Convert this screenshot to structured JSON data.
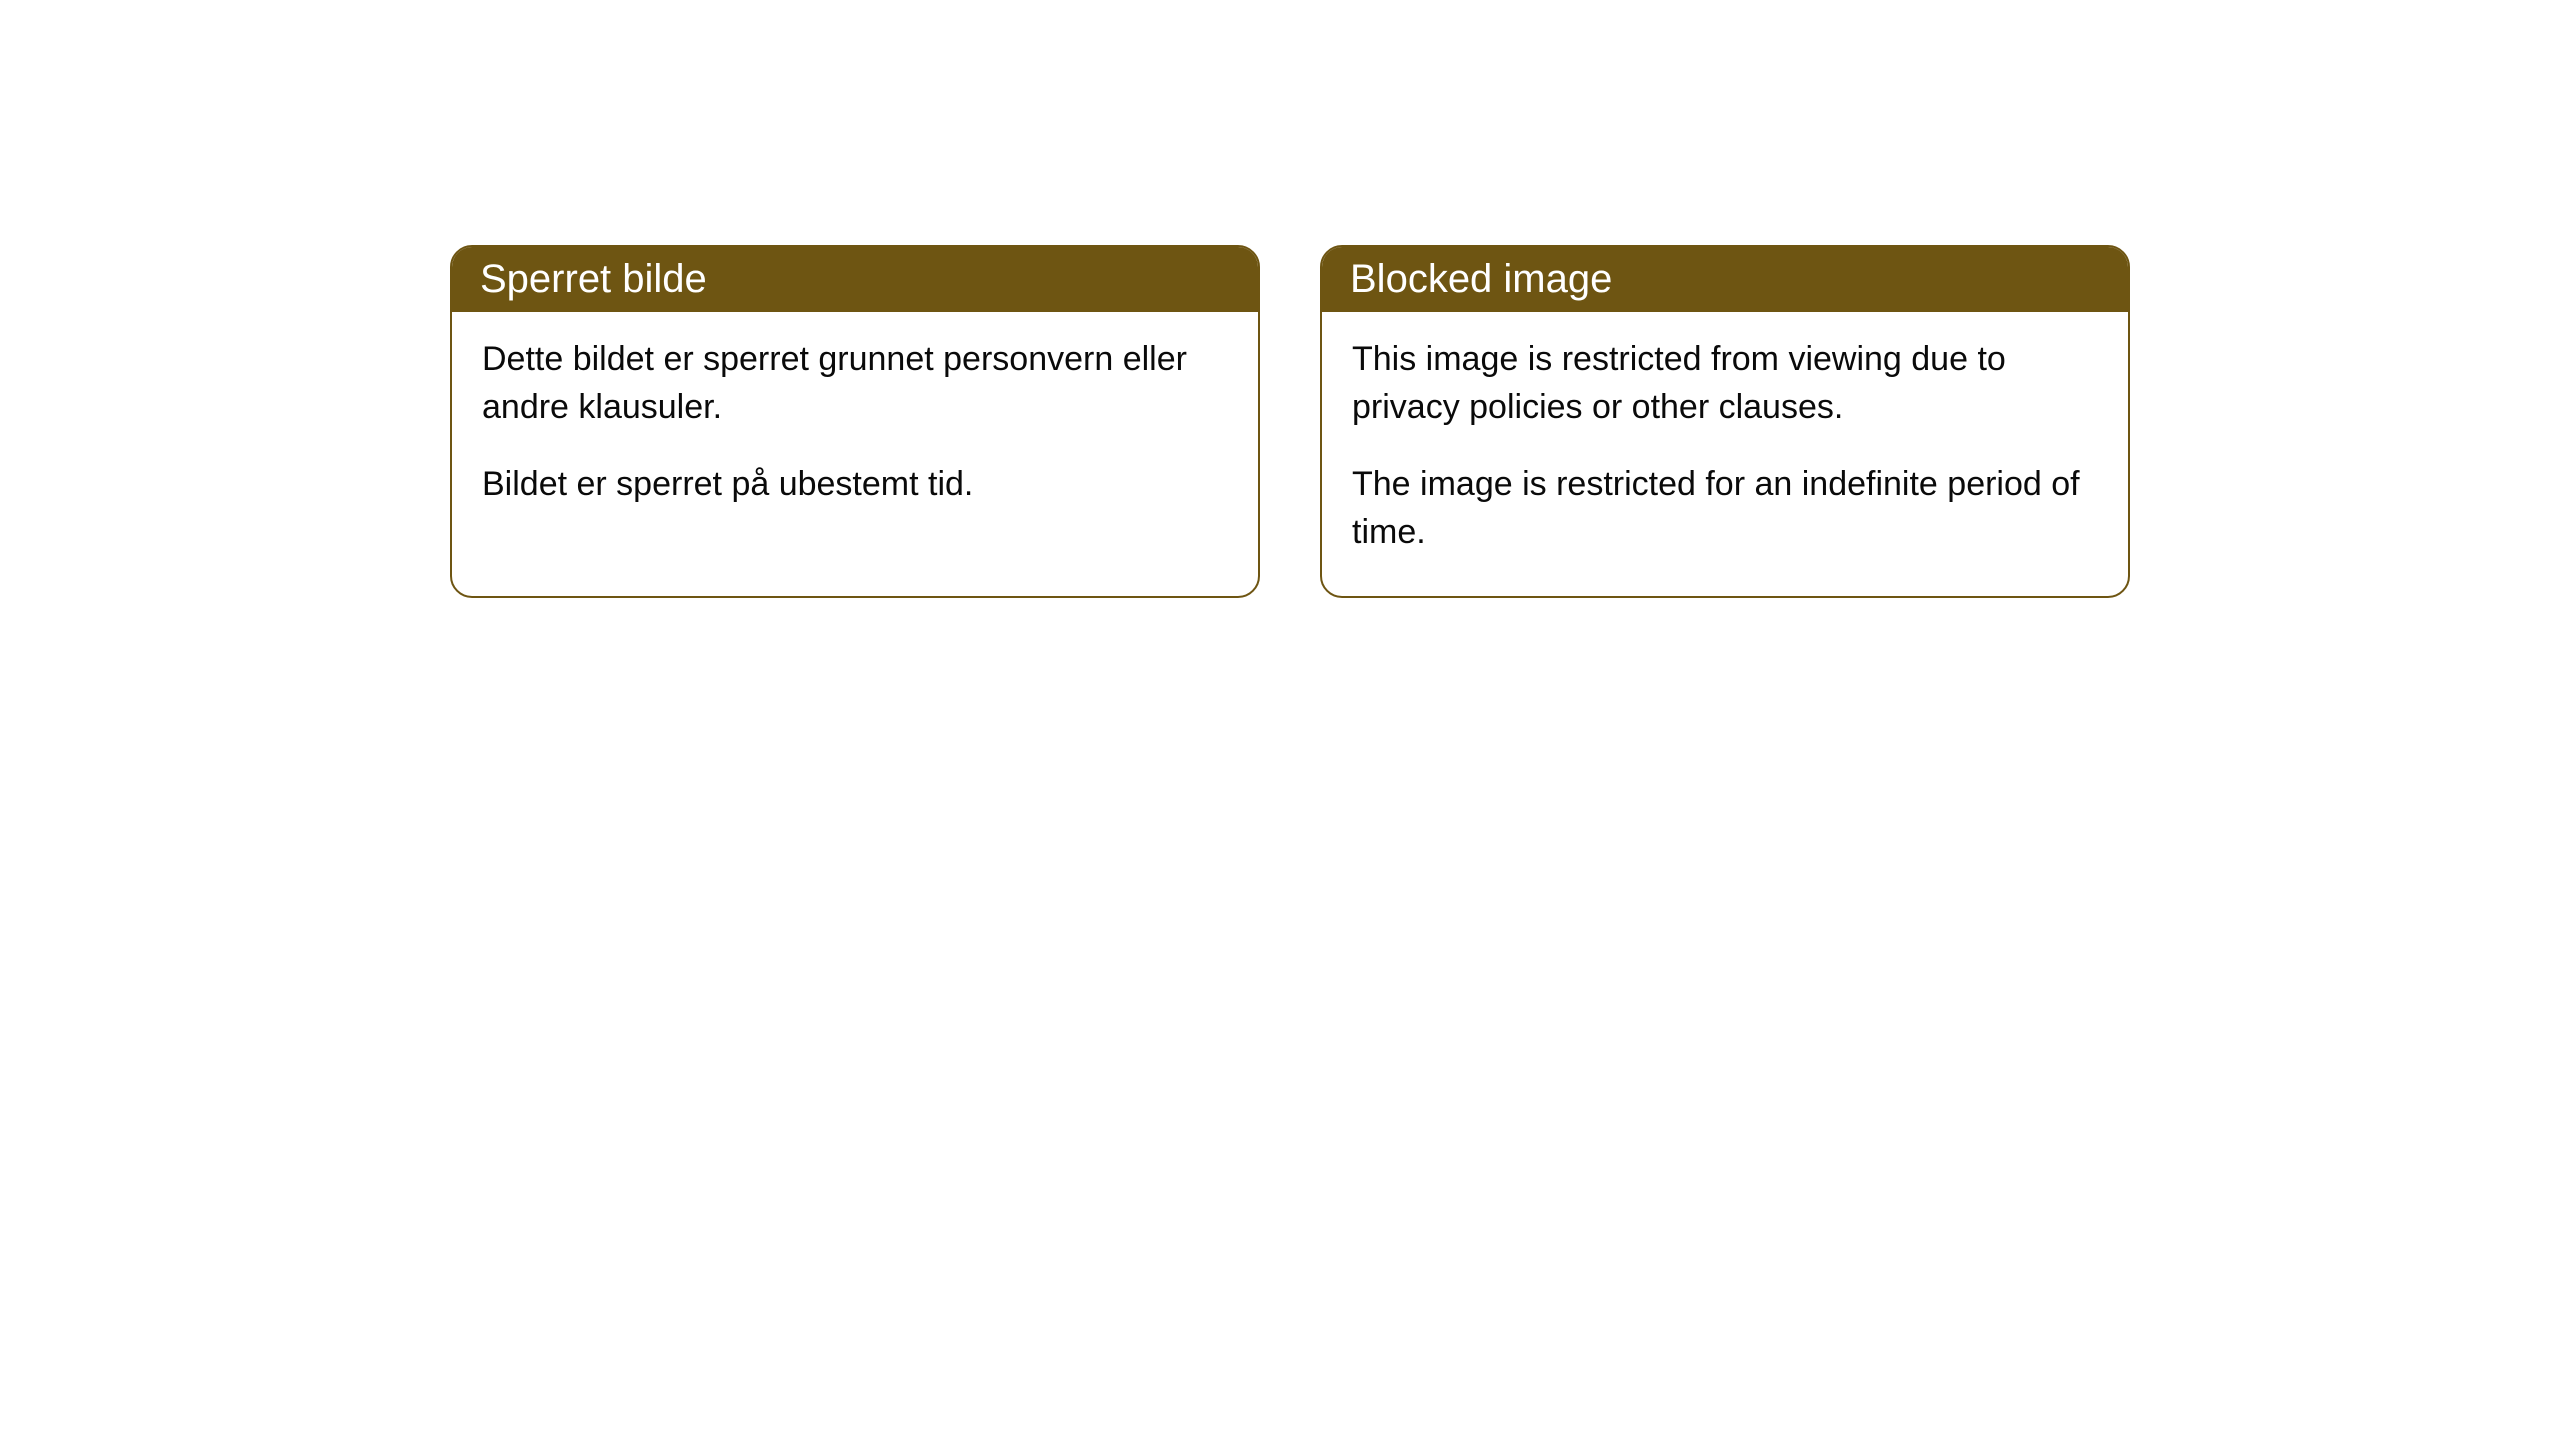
{
  "cards": [
    {
      "title": "Sperret bilde",
      "paragraph1": "Dette bildet er sperret grunnet personvern eller andre klausuler.",
      "paragraph2": "Bildet er sperret på ubestemt tid."
    },
    {
      "title": "Blocked image",
      "paragraph1": "This image is restricted from viewing due to privacy policies or other clauses.",
      "paragraph2": "The image is restricted for an indefinite period of time."
    }
  ],
  "styling": {
    "header_bg_color": "#6e5512",
    "header_text_color": "#ffffff",
    "border_color": "#6e5512",
    "body_bg_color": "#ffffff",
    "body_text_color": "#0a0a0a",
    "border_radius": 22,
    "header_fontsize": 40,
    "body_fontsize": 34
  }
}
